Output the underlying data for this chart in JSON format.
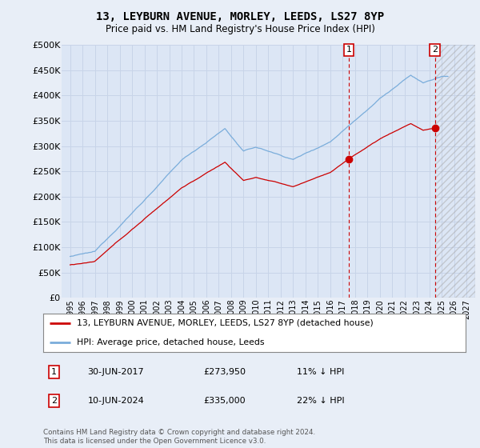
{
  "title": "13, LEYBURN AVENUE, MORLEY, LEEDS, LS27 8YP",
  "subtitle": "Price paid vs. HM Land Registry's House Price Index (HPI)",
  "background_color": "#e8eef7",
  "plot_background": "#dce6f5",
  "grid_color": "#c8d4e8",
  "ylim": [
    0,
    500000
  ],
  "yticks": [
    0,
    50000,
    100000,
    150000,
    200000,
    250000,
    300000,
    350000,
    400000,
    450000,
    500000
  ],
  "ytick_labels": [
    "£0",
    "£50K",
    "£100K",
    "£150K",
    "£200K",
    "£250K",
    "£300K",
    "£350K",
    "£400K",
    "£450K",
    "£500K"
  ],
  "legend_label_red": "13, LEYBURN AVENUE, MORLEY, LEEDS, LS27 8YP (detached house)",
  "legend_label_blue": "HPI: Average price, detached house, Leeds",
  "transaction1_date": "30-JUN-2017",
  "transaction1_price": "£273,950",
  "transaction1_hpi": "11% ↓ HPI",
  "transaction2_date": "10-JUN-2024",
  "transaction2_price": "£335,000",
  "transaction2_hpi": "22% ↓ HPI",
  "copyright": "Contains HM Land Registry data © Crown copyright and database right 2024.\nThis data is licensed under the Open Government Licence v3.0.",
  "red_line_color": "#cc0000",
  "blue_line_color": "#7aaddb",
  "marker1_y": 273950,
  "marker2_y": 335000,
  "vline1_year": 2017.5,
  "vline2_year": 2024.45,
  "xlim_left": 1994.3,
  "xlim_right": 2027.7
}
